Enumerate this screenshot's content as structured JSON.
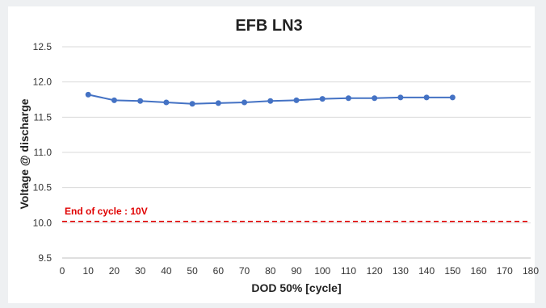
{
  "chart_data": {
    "type": "line",
    "title": "EFB LN3",
    "xlabel": "DOD 50% [cycle]",
    "ylabel": "Voltage @ discharge",
    "xlim": [
      0,
      180
    ],
    "ylim": [
      9.5,
      12.5
    ],
    "x_ticks": [
      0,
      10,
      20,
      30,
      40,
      50,
      60,
      70,
      80,
      90,
      100,
      110,
      120,
      130,
      140,
      150,
      160,
      170,
      180
    ],
    "y_ticks": [
      9.5,
      10.0,
      10.5,
      11.0,
      11.5,
      12.0,
      12.5
    ],
    "y_tick_labels": [
      "9.5",
      "10.0",
      "10.5",
      "11.0",
      "11.5",
      "12.0",
      "12.5"
    ],
    "grid": "horizontal",
    "series": [
      {
        "x": [
          10,
          20,
          30,
          40,
          50,
          60,
          70,
          80,
          90,
          100,
          110,
          120,
          130,
          140,
          150
        ],
        "values": [
          11.82,
          11.74,
          11.73,
          11.71,
          11.69,
          11.7,
          11.71,
          11.73,
          11.74,
          11.76,
          11.77,
          11.77,
          11.78,
          11.78,
          11.78
        ],
        "color": "#4472c4"
      }
    ],
    "reference_line": {
      "y": 10.02,
      "color": "#e00000",
      "style": "dashed",
      "label": "End of cycle : 10V"
    }
  }
}
